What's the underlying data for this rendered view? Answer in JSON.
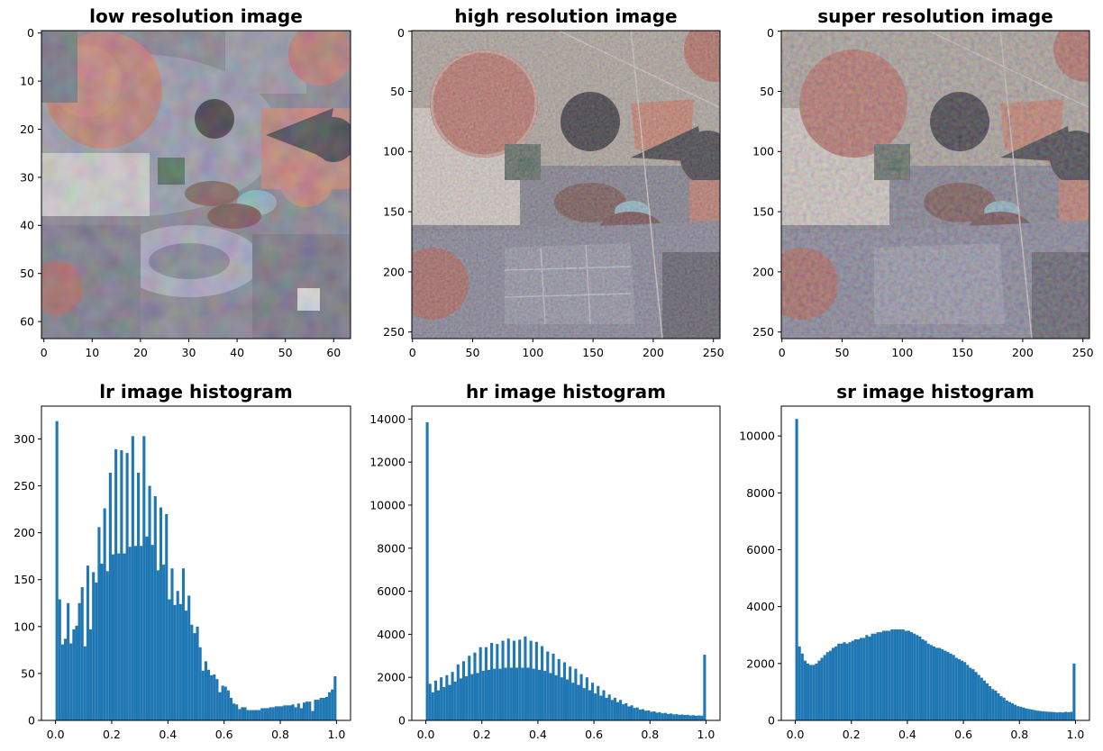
{
  "chart_data": [
    {
      "type": "image",
      "title": "low resolution image",
      "xticks": [
        "0",
        "10",
        "20",
        "30",
        "40",
        "50",
        "60"
      ],
      "yticks": [
        "0",
        "10",
        "20",
        "30",
        "40",
        "50",
        "60"
      ],
      "xlim": [
        -0.5,
        63.5
      ],
      "ylim": [
        63.5,
        -0.5
      ]
    },
    {
      "type": "image",
      "title": "high resolution image",
      "xticks": [
        "0",
        "50",
        "100",
        "150",
        "200",
        "250"
      ],
      "yticks": [
        "0",
        "50",
        "100",
        "150",
        "200",
        "250"
      ],
      "xlim": [
        -0.5,
        255.5
      ],
      "ylim": [
        255.5,
        -0.5
      ]
    },
    {
      "type": "image",
      "title": "super resolution image",
      "xticks": [
        "0",
        "50",
        "100",
        "150",
        "200",
        "250"
      ],
      "yticks": [
        "0",
        "50",
        "100",
        "150",
        "200",
        "250"
      ],
      "xlim": [
        -0.5,
        255.5
      ],
      "ylim": [
        255.5,
        -0.5
      ]
    },
    {
      "type": "bar",
      "title": "lr image histogram",
      "xlim": [
        -0.05,
        1.05
      ],
      "ylim": [
        0,
        335
      ],
      "xticks": [
        "0.0",
        "0.2",
        "0.4",
        "0.6",
        "0.8",
        "1.0"
      ],
      "yticks": [
        "0",
        "50",
        "100",
        "150",
        "200",
        "250",
        "300"
      ],
      "bins": 100,
      "color": "#1f77b4",
      "values": [
        319,
        129,
        81,
        87,
        125,
        82,
        97,
        101,
        125,
        142,
        79,
        165,
        97,
        158,
        147,
        206,
        167,
        226,
        159,
        264,
        177,
        289,
        178,
        288,
        178,
        285,
        185,
        303,
        186,
        264,
        186,
        303,
        196,
        250,
        187,
        239,
        160,
        227,
        166,
        220,
        129,
        162,
        123,
        138,
        124,
        162,
        117,
        133,
        102,
        93,
        100,
        78,
        53,
        63,
        54,
        48,
        49,
        44,
        30,
        37,
        36,
        32,
        24,
        18,
        17,
        12,
        14,
        14,
        11,
        11,
        11,
        11,
        11,
        13,
        13,
        13,
        14,
        14,
        15,
        15,
        15,
        16,
        16,
        16,
        17,
        14,
        18,
        13,
        19,
        20,
        20,
        10,
        22,
        22,
        24,
        24,
        25,
        30,
        33,
        47
      ]
    },
    {
      "type": "bar",
      "title": "hr image histogram",
      "xlim": [
        -0.05,
        1.05
      ],
      "ylim": [
        0,
        14600
      ],
      "xticks": [
        "0.0",
        "0.2",
        "0.4",
        "0.6",
        "0.8",
        "1.0"
      ],
      "yticks": [
        "0",
        "2000",
        "4000",
        "6000",
        "8000",
        "10000",
        "12000",
        "14000"
      ],
      "bins": 100,
      "color": "#1f77b4",
      "values": [
        13850,
        1700,
        1300,
        1850,
        1400,
        2000,
        1550,
        2100,
        1650,
        2250,
        1800,
        2600,
        1950,
        2750,
        2050,
        3000,
        2150,
        3150,
        2200,
        3400,
        2300,
        3400,
        2350,
        3600,
        2400,
        3550,
        2400,
        3700,
        2450,
        3800,
        2450,
        3700,
        2450,
        3750,
        2450,
        3900,
        2450,
        3700,
        2400,
        3650,
        2350,
        3450,
        2300,
        3200,
        2200,
        3100,
        2100,
        2850,
        2000,
        2700,
        1900,
        2500,
        1750,
        2400,
        1650,
        2150,
        1500,
        2000,
        1400,
        1750,
        1250,
        1600,
        1150,
        1400,
        1050,
        1200,
        950,
        1050,
        850,
        950,
        750,
        800,
        650,
        700,
        580,
        600,
        500,
        520,
        450,
        460,
        400,
        420,
        360,
        380,
        330,
        350,
        300,
        320,
        280,
        290,
        260,
        270,
        250,
        260,
        230,
        240,
        220,
        230,
        220,
        3050
      ]
    },
    {
      "type": "bar",
      "title": "sr image histogram",
      "xlim": [
        -0.05,
        1.05
      ],
      "ylim": [
        0,
        11050
      ],
      "xticks": [
        "0.0",
        "0.2",
        "0.4",
        "0.6",
        "0.8",
        "1.0"
      ],
      "yticks": [
        "0",
        "2000",
        "4000",
        "6000",
        "8000",
        "10000"
      ],
      "bins": 100,
      "color": "#1f77b4",
      "values": [
        10600,
        2600,
        2350,
        2100,
        2000,
        1950,
        1950,
        2000,
        2100,
        2200,
        2300,
        2400,
        2450,
        2550,
        2600,
        2700,
        2700,
        2750,
        2700,
        2750,
        2800,
        2850,
        2850,
        2900,
        2900,
        3000,
        2950,
        3050,
        3050,
        3100,
        3100,
        3150,
        3150,
        3150,
        3200,
        3200,
        3200,
        3200,
        3200,
        3150,
        3150,
        3100,
        3050,
        3000,
        2950,
        2850,
        2800,
        2700,
        2650,
        2600,
        2550,
        2550,
        2500,
        2450,
        2400,
        2350,
        2300,
        2200,
        2150,
        2100,
        2050,
        1950,
        1850,
        1800,
        1700,
        1600,
        1500,
        1400,
        1300,
        1200,
        1100,
        1050,
        950,
        850,
        800,
        700,
        650,
        600,
        550,
        500,
        480,
        450,
        420,
        400,
        380,
        360,
        340,
        330,
        320,
        310,
        300,
        300,
        290,
        280,
        290,
        280,
        300,
        290,
        300,
        2000
      ]
    }
  ]
}
